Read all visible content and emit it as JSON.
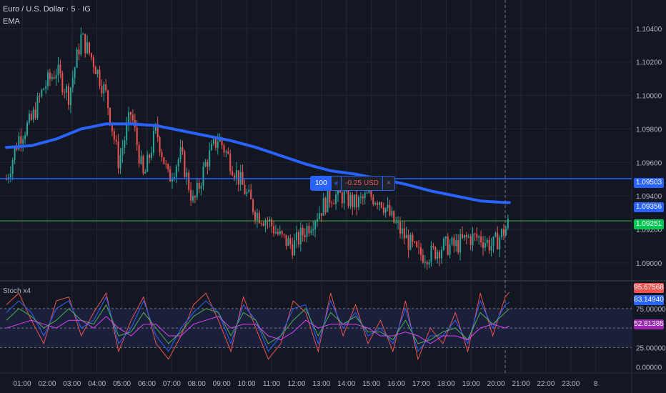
{
  "header": {
    "title": "Euro / U.S. Dollar · 5 · IG",
    "ema_label": "EMA",
    "stoch_label": "Stoch x4"
  },
  "order_line": {
    "quantity": "100",
    "arrows": "«",
    "pnl": "-0.25 USD",
    "close": "×"
  },
  "price_tags": {
    "order_price": "1.09503",
    "ema_price": "1.09356",
    "last_price": "1.09251"
  },
  "stoch_tags": {
    "t1": "95.67568",
    "t2": "83.14940",
    "t3": "52.81385"
  },
  "colors": {
    "background": "#131722",
    "grid": "#232733",
    "up": "#26a69a",
    "down": "#ef5350",
    "ema": "#2962ff",
    "order_line": "#2962ff",
    "last_price_line": "#4caf50",
    "last_price_tag": "#00c853",
    "order_tag": "#2962ff",
    "stoch_band": "#1a1f3a"
  },
  "chart_data": [
    {
      "type": "line",
      "title": "Euro / U.S. Dollar · 5 · IG",
      "x_ticks": [
        "01:00",
        "02:00",
        "03:00",
        "04:00",
        "05:00",
        "06:00",
        "07:00",
        "08:00",
        "09:00",
        "10:00",
        "11:00",
        "12:00",
        "13:00",
        "14:00",
        "15:00",
        "16:00",
        "17:00",
        "18:00",
        "19:00",
        "20:00",
        "21:00",
        "22:00",
        "23:00",
        "8"
      ],
      "y_ticks": [
        "1.10400",
        "1.10200",
        "1.10000",
        "1.09800",
        "1.09600",
        "1.09400",
        "1.09200",
        "1.09000"
      ],
      "ylim": [
        1.0888,
        1.1057
      ],
      "series": [
        {
          "name": "EURUSD",
          "x": [
            "00:00",
            "00:30",
            "01:00",
            "01:30",
            "02:00",
            "02:30",
            "03:00",
            "03:30",
            "04:00",
            "04:30",
            "05:00",
            "05:30",
            "06:00",
            "06:30",
            "07:00",
            "07:30",
            "08:00",
            "08:30",
            "09:00",
            "09:30",
            "10:00",
            "10:30",
            "11:00",
            "11:30",
            "12:00",
            "12:30",
            "13:00",
            "13:30",
            "14:00",
            "14:30",
            "15:00",
            "15:30",
            "16:00",
            "16:30",
            "17:00",
            "17:30",
            "18:00",
            "18:30",
            "19:00",
            "19:30",
            "20:00",
            "20:10"
          ],
          "close": [
            1.095,
            1.0975,
            1.0985,
            1.1005,
            1.1015,
            1.1,
            1.1035,
            1.102,
            1.1,
            1.096,
            1.099,
            1.095,
            1.098,
            1.095,
            1.0965,
            1.0935,
            1.096,
            1.0975,
            1.096,
            1.0945,
            1.093,
            1.0925,
            1.0915,
            1.091,
            1.092,
            1.093,
            1.094,
            1.094,
            1.0935,
            1.094,
            1.0938,
            1.0925,
            1.0915,
            1.0905,
            1.0905,
            1.091,
            1.091,
            1.0915,
            1.0915,
            1.091,
            1.092,
            1.0925
          ]
        },
        {
          "name": "EMA",
          "x": [
            "00:00",
            "01:00",
            "02:00",
            "03:00",
            "04:00",
            "05:00",
            "06:00",
            "07:00",
            "08:00",
            "09:00",
            "10:00",
            "11:00",
            "12:00",
            "13:00",
            "14:00",
            "15:00",
            "16:00",
            "17:00",
            "18:00",
            "19:00",
            "20:00",
            "20:10"
          ],
          "values": [
            1.0969,
            1.097,
            1.0974,
            1.098,
            1.0983,
            1.0983,
            1.0982,
            1.0979,
            1.0976,
            1.0973,
            1.0969,
            1.0964,
            1.0959,
            1.0955,
            1.0953,
            1.095,
            1.0947,
            1.0943,
            1.094,
            1.0937,
            1.0936,
            1.0936
          ]
        }
      ],
      "annotations": [
        {
          "label": "order",
          "price": 1.09503
        },
        {
          "label": "last",
          "price": 1.09251
        }
      ]
    },
    {
      "type": "line",
      "title": "Stoch x4",
      "y_ticks": [
        "75.00000",
        "25.00000",
        "0.00000"
      ],
      "ylim": [
        -5,
        108
      ],
      "bands": [
        75,
        50,
        25
      ],
      "series": [
        {
          "color": "#ef5350",
          "values": [
            80,
            95,
            60,
            30,
            85,
            90,
            40,
            70,
            95,
            20,
            60,
            90,
            30,
            10,
            40,
            80,
            95,
            60,
            20,
            90,
            50,
            10,
            30,
            85,
            70,
            20,
            95,
            40,
            80,
            30,
            60,
            20,
            85,
            10,
            50,
            30,
            70,
            20,
            95,
            40,
            90,
            96
          ]
        },
        {
          "color": "#2962ff",
          "values": [
            70,
            85,
            70,
            40,
            75,
            85,
            50,
            60,
            90,
            30,
            50,
            85,
            40,
            20,
            50,
            70,
            85,
            70,
            30,
            80,
            60,
            20,
            40,
            75,
            80,
            30,
            85,
            50,
            70,
            40,
            50,
            30,
            75,
            20,
            40,
            40,
            60,
            30,
            85,
            50,
            80,
            83
          ]
        },
        {
          "color": "#4caf50",
          "values": [
            60,
            75,
            65,
            50,
            60,
            75,
            60,
            55,
            80,
            40,
            45,
            70,
            50,
            30,
            45,
            65,
            75,
            70,
            40,
            70,
            60,
            30,
            40,
            60,
            75,
            40,
            70,
            55,
            65,
            45,
            45,
            35,
            60,
            30,
            35,
            45,
            50,
            35,
            70,
            55,
            70,
            75
          ]
        },
        {
          "color": "#e040fb",
          "values": [
            50,
            55,
            60,
            55,
            50,
            60,
            60,
            50,
            65,
            50,
            40,
            55,
            55,
            40,
            40,
            55,
            60,
            65,
            50,
            55,
            55,
            40,
            35,
            45,
            60,
            50,
            55,
            55,
            55,
            50,
            40,
            40,
            45,
            40,
            30,
            40,
            40,
            35,
            50,
            55,
            50,
            53
          ]
        }
      ]
    }
  ]
}
